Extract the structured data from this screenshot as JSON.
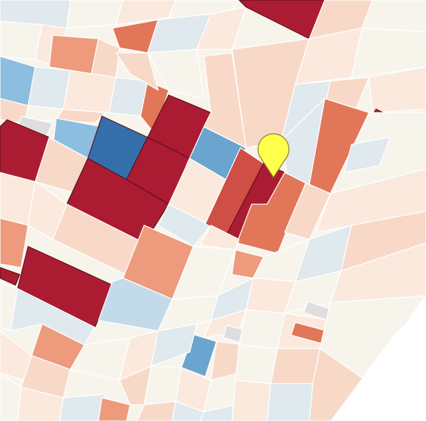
{
  "map": {
    "type": "choropleth-parcels",
    "legend": null,
    "palette": {
      "dark_red": "#ab1c32",
      "red": "#cf4e45",
      "orange_red": "#e27659",
      "salmon": "#ed9b7c",
      "peach": "#f8d9c8",
      "light_peach": "#fbe9de",
      "cream": "#f7f4ec",
      "pale_blue": "#dfe9ee",
      "light_blue": "#c2dae9",
      "mid_blue": "#8bbedf",
      "blue": "#6aa4cf",
      "dark_blue": "#346fac",
      "gray": "#dedede",
      "background": "#ffffff"
    },
    "marker": {
      "icon": "map-pin-icon",
      "color": "#ffff4d"
    }
  }
}
